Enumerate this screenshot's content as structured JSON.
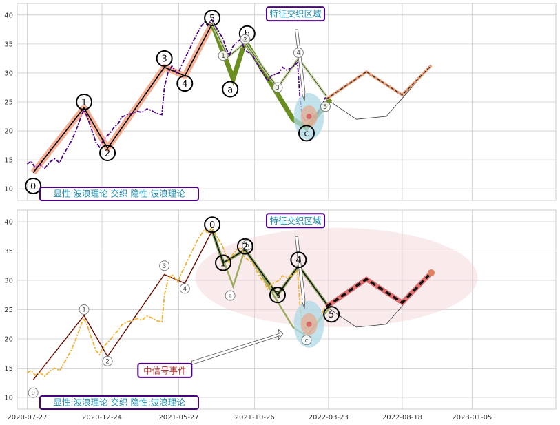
{
  "chart_data": {
    "type": "line",
    "x_tick_labels": [
      "2020-07-27",
      "2020-12-24",
      "2021-05-27",
      "2021-10-26",
      "2022-03-23",
      "2022-08-18",
      "2023-01-05"
    ],
    "x_tick_days": [
      0,
      150,
      304,
      456,
      604,
      752,
      892
    ],
    "x_range": [
      -20,
      1060
    ],
    "colors": {
      "grid": "#cccccc",
      "price_top": "#4b0082",
      "price_bottom": "#f0b030",
      "impulse_band": "#f4a98c",
      "impulse_line": "#000000",
      "correction_top": "#6b8e23",
      "correction_bottom": "#9aab60",
      "box_border": "#4b0082",
      "box_text": "#1f8fb5",
      "signal_text": "#b22222",
      "projection": "#e8a07a",
      "projection_bottom": "#e07070",
      "ellipse": "#add8e6",
      "ellipse_big": "#f2d0d5"
    },
    "panels": [
      {
        "name": "top",
        "ylim": [
          8,
          42
        ],
        "y_ticks": [
          10,
          15,
          20,
          25,
          30,
          35,
          40
        ],
        "box_label": "显性:波浪理论 交织 隐性:波浪理论",
        "annotation": "特征交织区域",
        "price": [
          [
            0,
            14.3
          ],
          [
            8,
            14.8
          ],
          [
            16,
            13.6
          ],
          [
            25,
            14.2
          ],
          [
            35,
            13.5
          ],
          [
            45,
            14.6
          ],
          [
            55,
            15.2
          ],
          [
            65,
            14.5
          ],
          [
            72,
            15.8
          ],
          [
            80,
            17.0
          ],
          [
            88,
            18.2
          ],
          [
            95,
            19.5
          ],
          [
            102,
            21.0
          ],
          [
            108,
            22.5
          ],
          [
            113,
            23.6
          ],
          [
            120,
            22.5
          ],
          [
            126,
            21.0
          ],
          [
            132,
            19.5
          ],
          [
            138,
            18.0
          ],
          [
            145,
            17.2
          ],
          [
            150,
            18.0
          ],
          [
            158,
            19.0
          ],
          [
            166,
            19.6
          ],
          [
            174,
            20.6
          ],
          [
            182,
            21.2
          ],
          [
            190,
            22.4
          ],
          [
            200,
            22.8
          ],
          [
            210,
            23.0
          ],
          [
            220,
            23.4
          ],
          [
            230,
            23.2
          ],
          [
            240,
            23.8
          ],
          [
            250,
            23.5
          ],
          [
            260,
            23.0
          ],
          [
            270,
            22.8
          ],
          [
            275,
            27.5
          ],
          [
            282,
            30.0
          ],
          [
            290,
            31.2
          ],
          [
            296,
            30.5
          ],
          [
            302,
            29.8
          ],
          [
            308,
            31.0
          ],
          [
            316,
            32.5
          ],
          [
            325,
            34.0
          ],
          [
            333,
            35.5
          ],
          [
            342,
            37.0
          ],
          [
            350,
            38.2
          ],
          [
            356,
            38.8
          ],
          [
            362,
            38.2
          ],
          [
            370,
            39.2
          ],
          [
            378,
            38.0
          ],
          [
            385,
            37.0
          ],
          [
            392,
            36.0
          ],
          [
            398,
            34.5
          ],
          [
            405,
            33.0
          ],
          [
            412,
            34.5
          ],
          [
            420,
            35.3
          ],
          [
            428,
            35.8
          ],
          [
            436,
            34.0
          ],
          [
            444,
            33.5
          ],
          [
            452,
            33.0
          ],
          [
            460,
            31.8
          ],
          [
            468,
            30.5
          ],
          [
            475,
            29.8
          ],
          [
            482,
            28.6
          ],
          [
            490,
            29.5
          ],
          [
            498,
            29.8
          ],
          [
            505,
            30.0
          ],
          [
            512,
            31.0
          ],
          [
            520,
            30.5
          ],
          [
            528,
            30.8
          ],
          [
            536,
            31.3
          ],
          [
            542,
            31.8
          ],
          [
            547,
            25.5
          ],
          [
            552,
            22.5
          ],
          [
            558,
            21.8
          ],
          [
            565,
            22.0
          ],
          [
            572,
            23.0
          ],
          [
            578,
            22.2
          ],
          [
            585,
            23.5
          ],
          [
            592,
            24.5
          ],
          [
            598,
            25.8
          ]
        ],
        "impulse": [
          [
            12,
            12.8
          ],
          [
            114,
            24.0
          ],
          [
            161,
            17.0
          ],
          [
            275,
            31.0
          ],
          [
            316,
            29.5
          ],
          [
            371,
            38.5
          ]
        ],
        "correction": [
          [
            371,
            38.5
          ],
          [
            413,
            29.0
          ],
          [
            437,
            35.5
          ],
          [
            533,
            22.0
          ],
          [
            560,
            20.5
          ],
          [
            608,
            25.5
          ]
        ],
        "secondary": [
          [
            371,
            38.5
          ],
          [
            403,
            32.8
          ],
          [
            437,
            35.2
          ],
          [
            502,
            27.5
          ],
          [
            544,
            32.5
          ],
          [
            600,
            26.0
          ]
        ],
        "projection": [
          [
            600,
            25.5
          ],
          [
            680,
            30.2
          ],
          [
            752,
            26.2
          ],
          [
            810,
            31.3
          ]
        ],
        "projection_curve": [
          [
            600,
            25.5
          ],
          [
            660,
            22.0
          ],
          [
            720,
            22.5
          ],
          [
            810,
            31.3
          ]
        ],
        "ellipse_center": [
          565,
          22.5
        ],
        "wave_labels": [
          {
            "text": "0",
            "x": 12,
            "y": 10.5,
            "size": "big"
          },
          {
            "text": "1",
            "x": 114,
            "y": 25.0,
            "size": "big"
          },
          {
            "text": "2",
            "x": 161,
            "y": 16.2,
            "size": "big"
          },
          {
            "text": "3",
            "x": 275,
            "y": 32.5,
            "size": "big"
          },
          {
            "text": "4",
            "x": 316,
            "y": 28.2,
            "size": "big"
          },
          {
            "text": "5",
            "x": 371,
            "y": 39.5,
            "size": "big"
          },
          {
            "text": "a",
            "x": 407,
            "y": 27.2,
            "size": "big"
          },
          {
            "text": "b",
            "x": 441,
            "y": 36.8,
            "size": "big"
          },
          {
            "text": "c",
            "x": 560,
            "y": 19.6,
            "size": "big"
          },
          {
            "text": "1",
            "x": 393,
            "y": 33.0,
            "size": "small"
          },
          {
            "text": "2",
            "x": 437,
            "y": 35.8,
            "size": "small"
          },
          {
            "text": "3",
            "x": 502,
            "y": 27.5,
            "size": "small"
          },
          {
            "text": "4",
            "x": 544,
            "y": 33.5,
            "size": "small"
          },
          {
            "text": "5",
            "x": 598,
            "y": 24.2,
            "size": "small"
          }
        ]
      },
      {
        "name": "bottom",
        "ylim": [
          8,
          42
        ],
        "y_ticks": [
          10,
          15,
          20,
          25,
          30,
          35,
          40
        ],
        "box_label": "显性:波浪理论 交织 隐性:波浪理论",
        "annotation": "特征交织区域",
        "signal_label": "中信号事件",
        "price": [
          [
            0,
            14.2
          ],
          [
            8,
            14.6
          ],
          [
            16,
            13.8
          ],
          [
            25,
            14.3
          ],
          [
            35,
            13.6
          ],
          [
            45,
            14.5
          ],
          [
            55,
            15.0
          ],
          [
            65,
            14.6
          ],
          [
            72,
            15.6
          ],
          [
            80,
            16.8
          ],
          [
            88,
            18.0
          ],
          [
            95,
            19.4
          ],
          [
            102,
            21.0
          ],
          [
            108,
            22.4
          ],
          [
            113,
            23.5
          ],
          [
            120,
            22.4
          ],
          [
            126,
            20.8
          ],
          [
            132,
            19.4
          ],
          [
            138,
            18.0
          ],
          [
            145,
            17.3
          ],
          [
            150,
            18.2
          ],
          [
            158,
            19.1
          ],
          [
            166,
            19.8
          ],
          [
            174,
            20.7
          ],
          [
            182,
            21.4
          ],
          [
            190,
            22.4
          ],
          [
            200,
            22.9
          ],
          [
            210,
            23.1
          ],
          [
            220,
            23.5
          ],
          [
            230,
            23.2
          ],
          [
            240,
            23.9
          ],
          [
            250,
            23.6
          ],
          [
            260,
            23.1
          ],
          [
            270,
            22.9
          ],
          [
            275,
            27.4
          ],
          [
            282,
            30.0
          ],
          [
            290,
            31.0
          ],
          [
            296,
            30.4
          ],
          [
            302,
            29.7
          ],
          [
            308,
            31.0
          ],
          [
            316,
            32.4
          ],
          [
            325,
            34.0
          ],
          [
            333,
            35.4
          ],
          [
            342,
            37.0
          ],
          [
            350,
            38.0
          ],
          [
            356,
            38.7
          ],
          [
            362,
            38.0
          ],
          [
            370,
            39.0
          ],
          [
            378,
            37.8
          ],
          [
            385,
            36.8
          ],
          [
            392,
            35.8
          ],
          [
            398,
            34.3
          ],
          [
            405,
            33.0
          ],
          [
            412,
            34.4
          ],
          [
            420,
            35.2
          ],
          [
            428,
            35.6
          ],
          [
            436,
            34.0
          ],
          [
            444,
            33.4
          ],
          [
            452,
            33.0
          ],
          [
            460,
            31.6
          ],
          [
            468,
            30.4
          ],
          [
            475,
            29.7
          ],
          [
            482,
            28.5
          ],
          [
            490,
            29.4
          ],
          [
            498,
            29.7
          ],
          [
            505,
            30.0
          ],
          [
            512,
            30.8
          ],
          [
            520,
            30.5
          ],
          [
            528,
            30.7
          ],
          [
            536,
            31.2
          ],
          [
            542,
            31.6
          ],
          [
            547,
            25.4
          ],
          [
            552,
            22.5
          ],
          [
            558,
            21.8
          ],
          [
            565,
            22.0
          ],
          [
            572,
            23.0
          ],
          [
            578,
            22.2
          ],
          [
            585,
            23.4
          ],
          [
            592,
            24.5
          ],
          [
            598,
            25.6
          ]
        ],
        "impulse": [
          [
            12,
            13.0
          ],
          [
            114,
            24.0
          ],
          [
            161,
            17.0
          ],
          [
            275,
            31.0
          ],
          [
            316,
            29.5
          ],
          [
            371,
            38.5
          ]
        ],
        "correction": [
          [
            371,
            38.5
          ],
          [
            413,
            29.0
          ],
          [
            437,
            35.5
          ],
          [
            533,
            22.0
          ],
          [
            560,
            20.5
          ],
          [
            608,
            25.5
          ]
        ],
        "secondary": [
          [
            371,
            38.5
          ],
          [
            393,
            33.0
          ],
          [
            437,
            35.2
          ],
          [
            502,
            27.5
          ],
          [
            544,
            32.5
          ],
          [
            600,
            26.0
          ]
        ],
        "projection": [
          [
            600,
            25.5
          ],
          [
            680,
            30.2
          ],
          [
            752,
            26.2
          ],
          [
            810,
            31.3
          ]
        ],
        "projection_curve": [
          [
            600,
            25.5
          ],
          [
            660,
            22.0
          ],
          [
            720,
            22.5
          ],
          [
            810,
            31.3
          ]
        ],
        "ellipse_center": [
          565,
          22.5
        ],
        "wave_labels": [
          {
            "text": "0",
            "x": 12,
            "y": 10.8,
            "size": "small"
          },
          {
            "text": "1",
            "x": 114,
            "y": 25.0,
            "size": "small"
          },
          {
            "text": "2",
            "x": 161,
            "y": 16.2,
            "size": "small"
          },
          {
            "text": "3",
            "x": 275,
            "y": 32.5,
            "size": "small"
          },
          {
            "text": "4",
            "x": 316,
            "y": 28.6,
            "size": "small"
          },
          {
            "text": "a",
            "x": 407,
            "y": 27.4,
            "size": "small"
          },
          {
            "text": "b",
            "x": 441,
            "y": 36.0,
            "size": "small"
          },
          {
            "text": "c",
            "x": 560,
            "y": 19.8,
            "size": "small"
          },
          {
            "text": "0",
            "x": 371,
            "y": 39.5,
            "size": "big"
          },
          {
            "text": "1",
            "x": 393,
            "y": 33.0,
            "size": "big"
          },
          {
            "text": "2",
            "x": 437,
            "y": 35.8,
            "size": "big"
          },
          {
            "text": "3",
            "x": 502,
            "y": 27.5,
            "size": "big"
          },
          {
            "text": "4",
            "x": 544,
            "y": 33.5,
            "size": "big"
          },
          {
            "text": "5",
            "x": 610,
            "y": 24.2,
            "size": "big"
          }
        ]
      }
    ]
  }
}
